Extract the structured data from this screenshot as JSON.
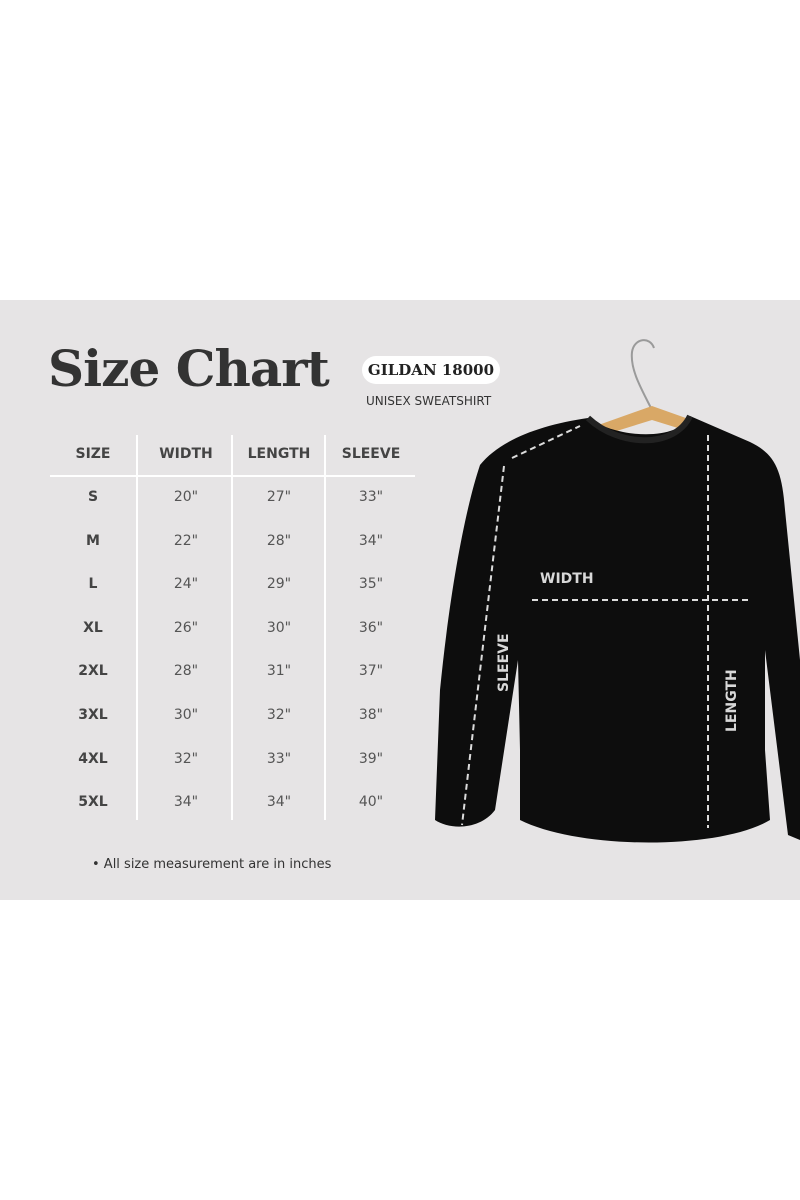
{
  "title": "Size Chart",
  "badge": "GILDAN 18000",
  "subtitle": "UNISEX SWEATSHIRT",
  "table": {
    "headers": [
      "SIZE",
      "WIDTH",
      "LENGTH",
      "SLEEVE"
    ],
    "rows": [
      [
        "S",
        "20\"",
        "27\"",
        "33\""
      ],
      [
        "M",
        "22\"",
        "28\"",
        "34\""
      ],
      [
        "L",
        "24\"",
        "29\"",
        "35\""
      ],
      [
        "XL",
        "26\"",
        "30\"",
        "36\""
      ],
      [
        "2XL",
        "28\"",
        "31\"",
        "37\""
      ],
      [
        "3XL",
        "30\"",
        "32\"",
        "38\""
      ],
      [
        "4XL",
        "32\"",
        "33\"",
        "39\""
      ],
      [
        "5XL",
        "34\"",
        "34\"",
        "40\""
      ]
    ]
  },
  "note": "• All size measurement are in inches",
  "diagram": {
    "width_label": "WIDTH",
    "sleeve_label": "SLEEVE",
    "length_label": "LENGTH"
  },
  "colors": {
    "panel": "#e6e4e5",
    "shirt": "#0d0d0d",
    "hanger": "#d9a866"
  }
}
